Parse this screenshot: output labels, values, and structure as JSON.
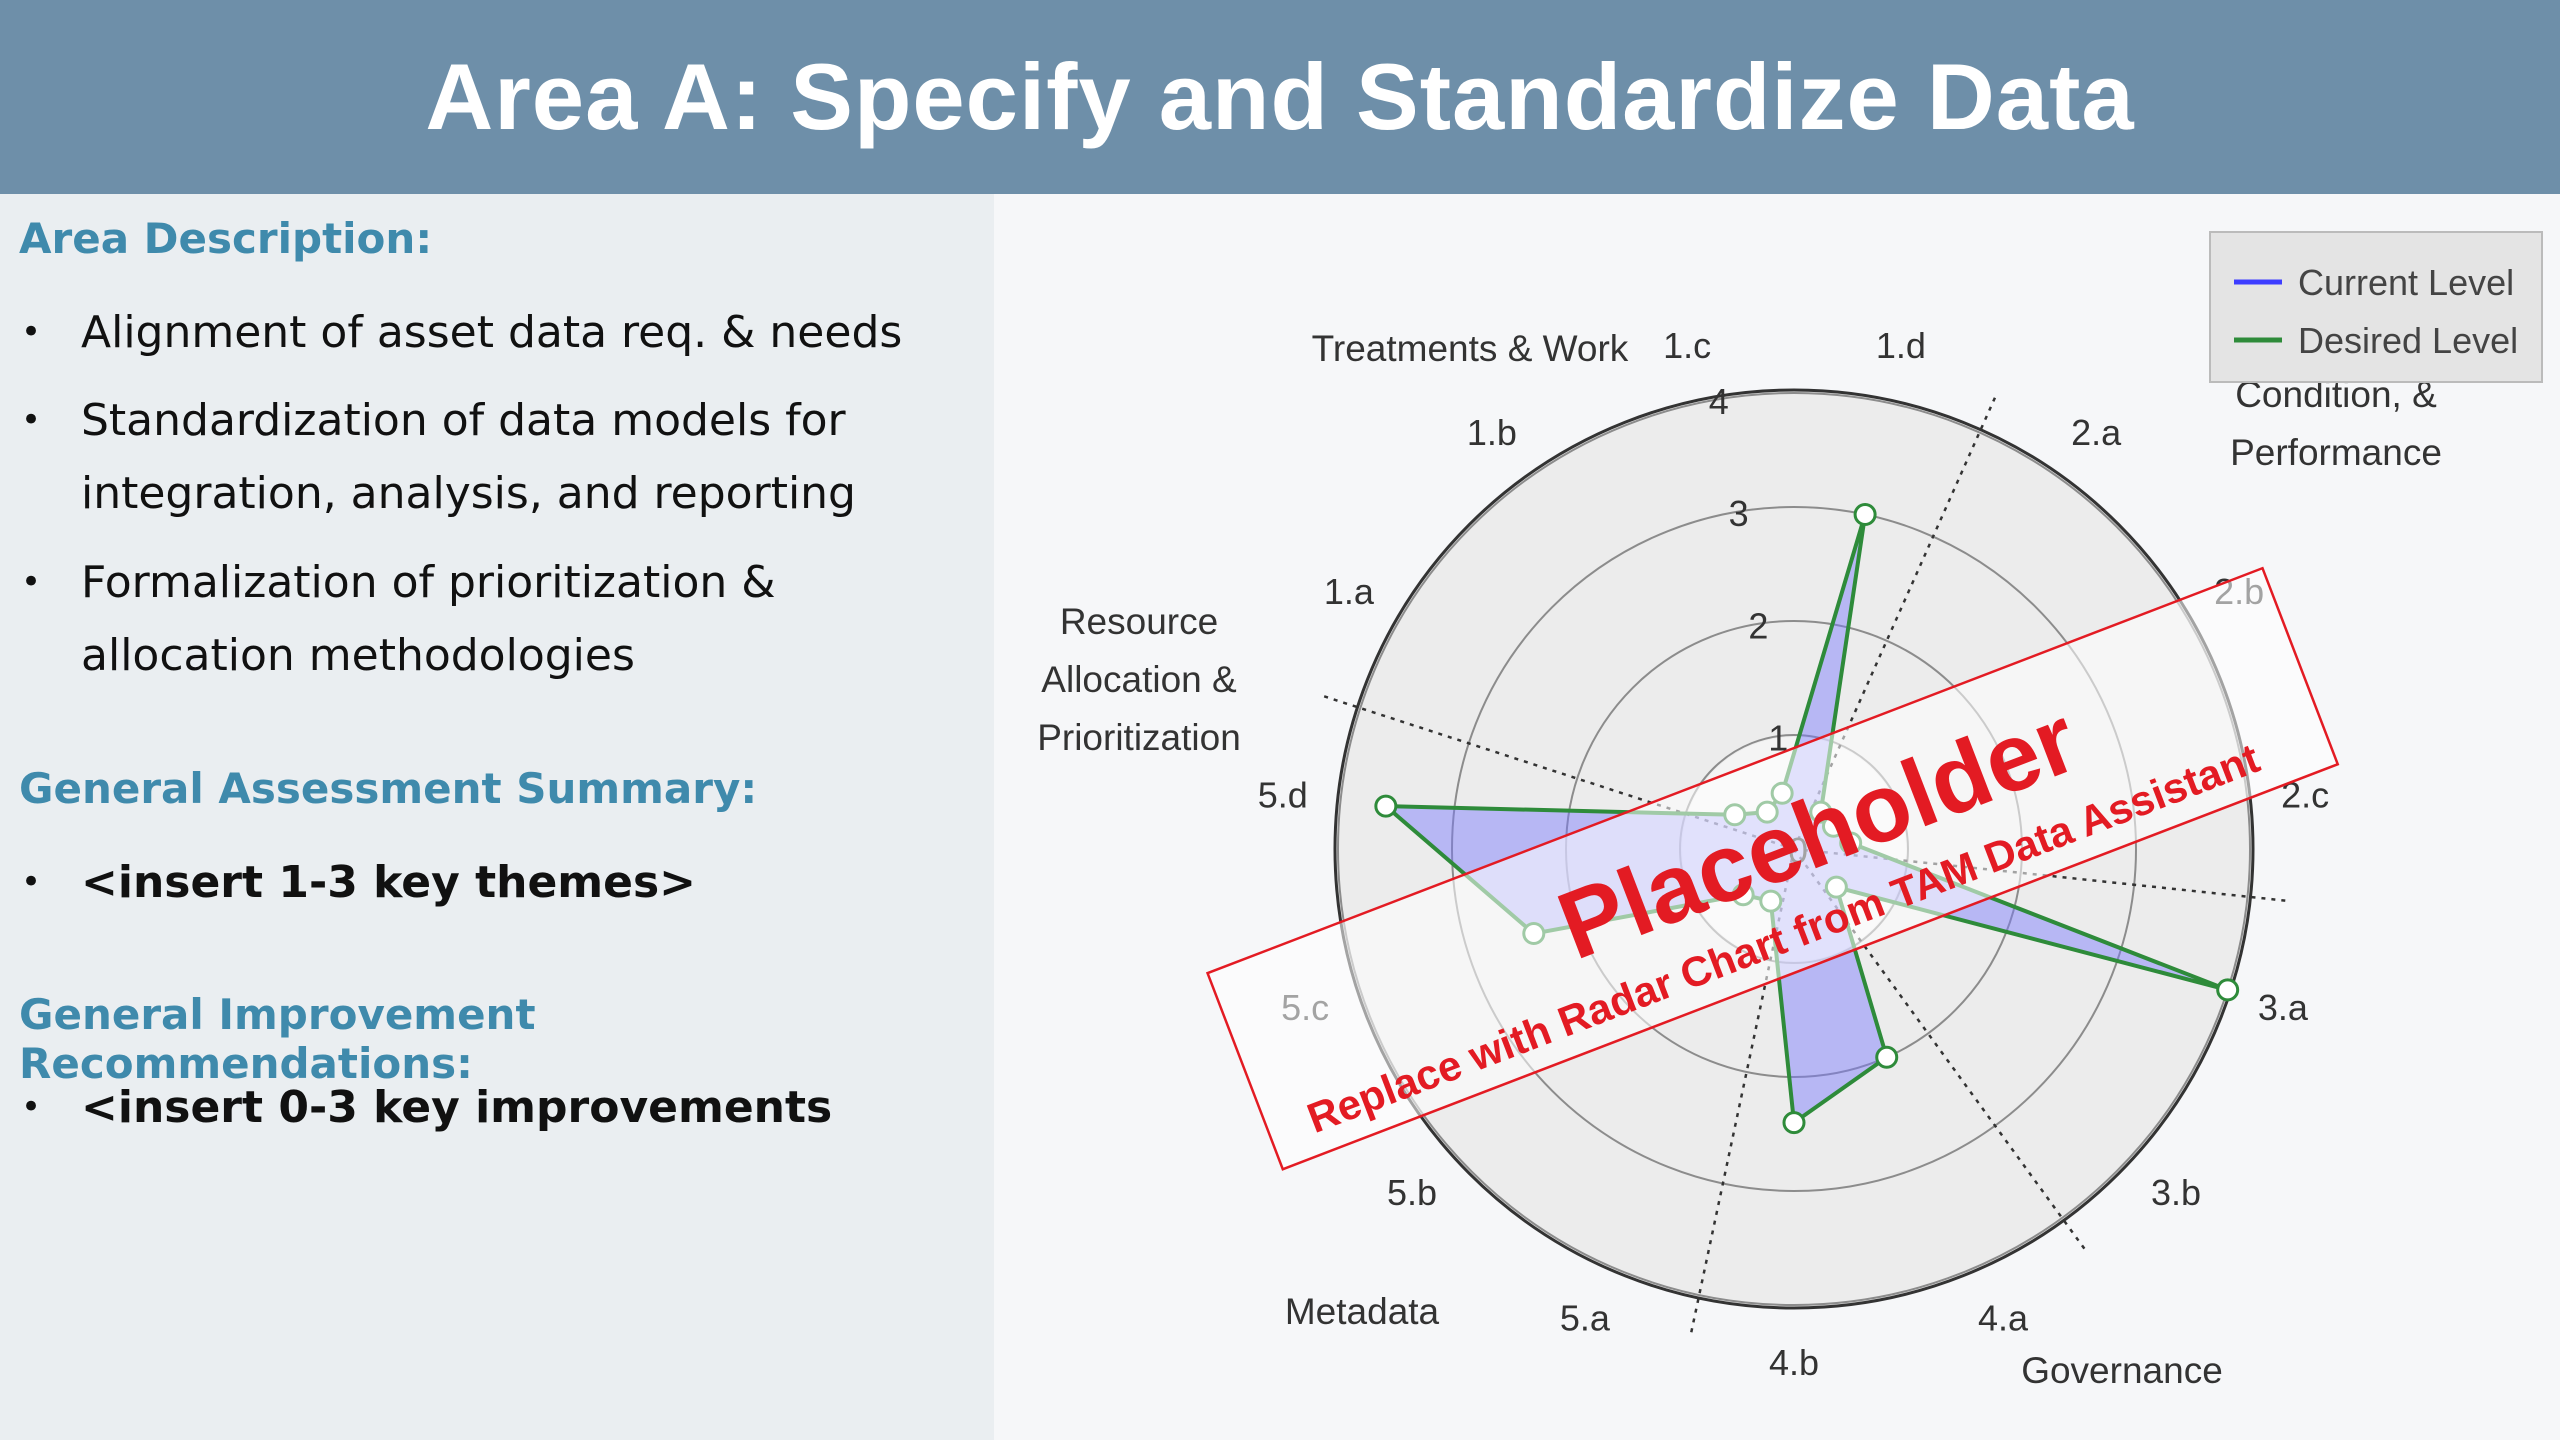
{
  "header": {
    "title": "Area A: Specify and Standardize Data"
  },
  "left": {
    "area_description_heading": "Area Description:",
    "area_description_items": [
      "Alignment of asset data req. & needs",
      "Standardization of data models for integration, analysis, and reporting",
      "Formalization of prioritization & allocation methodologies"
    ],
    "summary_heading": "General Assessment Summary:",
    "summary_items": [
      "<insert 1-3 key themes>"
    ],
    "recommendations_heading": "General Improvement Recommendations:",
    "recommendations_items": [
      "<insert 0-3 key improvements"
    ]
  },
  "chart_data": {
    "type": "radar",
    "axes": [
      "1.a",
      "1.b",
      "1.c",
      "1.d",
      "2.a",
      "2.b",
      "2.c",
      "3.a",
      "3.b",
      "4.a",
      "4.b",
      "5.a",
      "5.b",
      "5.c",
      "5.d"
    ],
    "radial_ticks": [
      "0",
      "1",
      "2",
      "3",
      "4"
    ],
    "rmax": 4,
    "groups": [
      "Inventory, Condition, & Performance",
      "Treatments & Work",
      "Resource Allocation & Prioritization",
      "Metadata",
      "Governance"
    ],
    "series": [
      {
        "name": "Current Level",
        "color": "#3d3dff",
        "values": [
          0.6,
          0.4,
          0.5,
          3.0,
          0.4,
          0.4,
          0.5,
          4.0,
          0.5,
          2.0,
          2.4,
          0.5,
          0.6,
          2.4,
          3.6
        ]
      },
      {
        "name": "Desired Level",
        "color": "#2e8b3a",
        "values": [
          0.6,
          0.4,
          0.5,
          3.0,
          0.4,
          0.4,
          0.5,
          4.0,
          0.5,
          2.0,
          2.4,
          0.5,
          0.6,
          2.4,
          3.6
        ]
      }
    ],
    "legend_position": "top-right"
  },
  "placeholder": {
    "title": "Placeholder",
    "subtitle": "Replace with Radar Chart from TAM Data Assistant"
  },
  "colors": {
    "header_bg": "#6e8fa9",
    "heading": "#3f8aac",
    "stamp": "#e31b23"
  }
}
